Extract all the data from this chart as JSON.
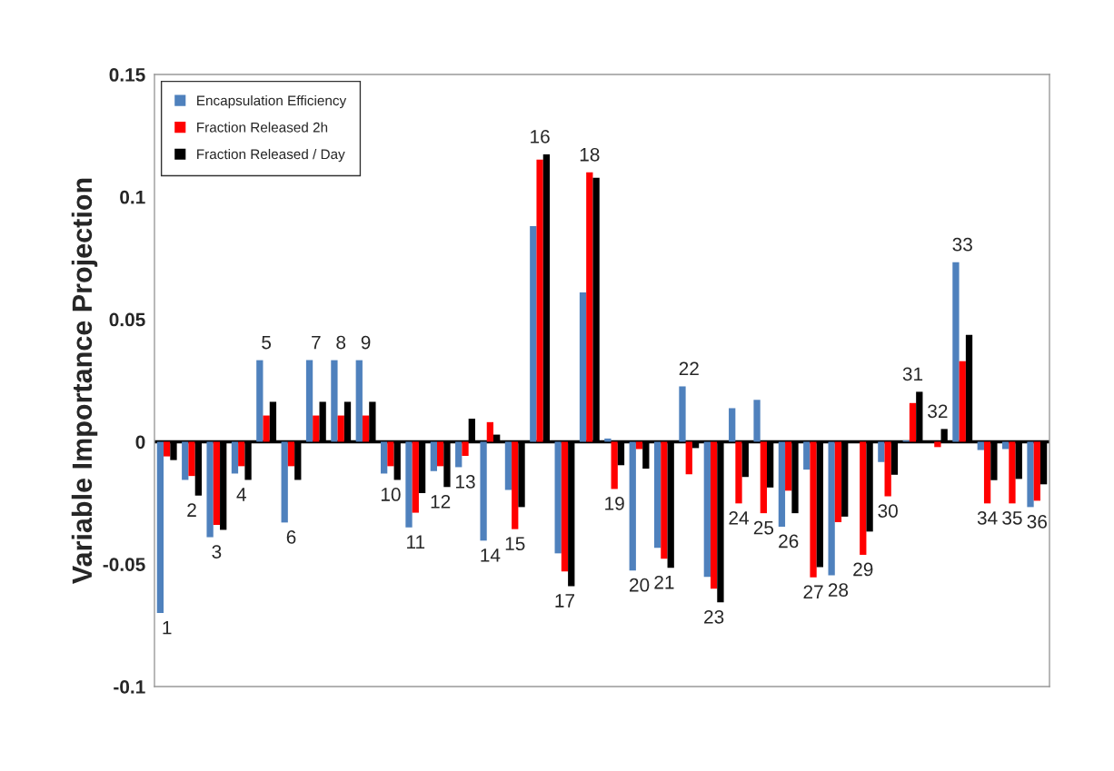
{
  "chart_data": {
    "type": "bar",
    "ylabel": "Variable Importance Projection",
    "categories": [
      "1",
      "2",
      "3",
      "4",
      "5",
      "6",
      "7",
      "8",
      "9",
      "10",
      "11",
      "12",
      "13",
      "14",
      "15",
      "16",
      "17",
      "18",
      "19",
      "20",
      "21",
      "22",
      "23",
      "24",
      "25",
      "26",
      "27",
      "28",
      "29",
      "30",
      "31",
      "32",
      "33",
      "34",
      "35",
      "36"
    ],
    "series": [
      {
        "name": "Encapsulation Efficiency",
        "color": "#4f81bd",
        "values": [
          -0.07,
          -0.0156,
          -0.039,
          -0.013,
          0.0333,
          -0.033,
          0.0333,
          0.0333,
          0.0333,
          -0.013,
          -0.035,
          -0.012,
          -0.0104,
          -0.0404,
          -0.0197,
          0.0881,
          -0.0456,
          0.061,
          0.0013,
          -0.0526,
          -0.0433,
          0.0226,
          -0.0552,
          0.0137,
          0.0171,
          -0.0347,
          -0.0114,
          -0.0546,
          0,
          -0.0083,
          0.0005,
          0,
          0.0733,
          -0.0034,
          -0.003,
          -0.0267
        ]
      },
      {
        "name": "Fraction Released 2h",
        "color": "#ff0000",
        "values": [
          -0.006,
          -0.014,
          -0.034,
          -0.01,
          0.0107,
          -0.01,
          0.0107,
          0.0107,
          0.0107,
          -0.01,
          -0.029,
          -0.01,
          -0.0058,
          0.008,
          -0.0357,
          0.1152,
          -0.053,
          0.11,
          -0.0193,
          -0.003,
          -0.0478,
          -0.0133,
          -0.06,
          -0.0252,
          -0.0292,
          -0.02,
          -0.0554,
          -0.0329,
          -0.0462,
          -0.0223,
          0.0158,
          -0.0022,
          0.0329,
          -0.0252,
          -0.0252,
          -0.0241
        ]
      },
      {
        "name": "Fraction Released / Day",
        "color": "#000000",
        "values": [
          -0.0075,
          -0.022,
          -0.036,
          -0.0156,
          0.0163,
          -0.0156,
          0.0163,
          0.0163,
          0.0163,
          -0.0156,
          -0.021,
          -0.0185,
          0.0094,
          0.0029,
          -0.0267,
          0.1174,
          -0.059,
          0.1078,
          -0.0096,
          -0.011,
          -0.0515,
          -0.0026,
          -0.0656,
          -0.0144,
          -0.0187,
          -0.0292,
          -0.0512,
          -0.0306,
          -0.0367,
          -0.0135,
          0.0204,
          0.0052,
          0.0436,
          -0.0157,
          -0.0152,
          -0.0174
        ]
      }
    ],
    "ylim": [
      -0.1,
      0.15
    ],
    "yticks": [
      -0.1,
      -0.05,
      0,
      0.05,
      0.1,
      0.15
    ],
    "tick_labels": "y",
    "legend": "top left",
    "grid": false
  }
}
